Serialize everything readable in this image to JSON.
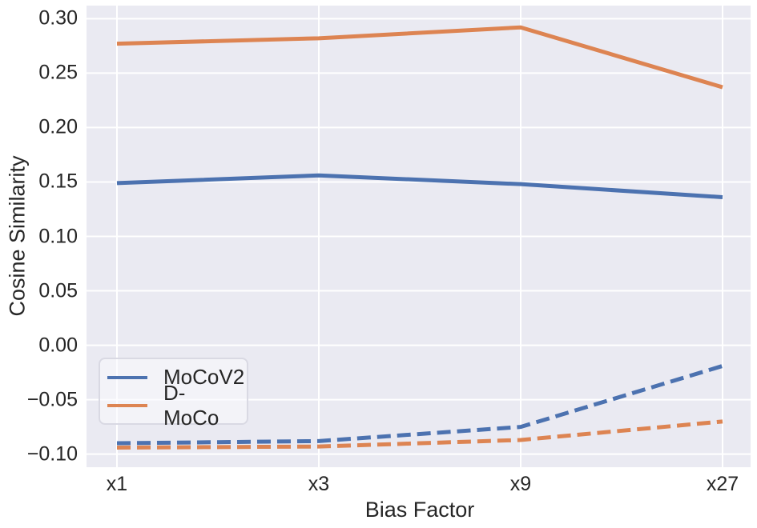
{
  "figure": {
    "background": "#ffffff",
    "plot_background": "#eaeaf2",
    "grid_color": "#ffffff",
    "text_color": "#262626"
  },
  "chart_data": {
    "type": "line",
    "title": "",
    "xlabel": "Bias Factor",
    "ylabel": "Cosine Similarity",
    "categories": [
      "x1",
      "x3",
      "x9",
      "x27"
    ],
    "y_ticks": [
      0.3,
      0.25,
      0.2,
      0.15,
      0.1,
      0.05,
      0.0,
      -0.05,
      -0.1
    ],
    "y_tick_labels": [
      "0.30",
      "0.25",
      "0.20",
      "0.15",
      "0.10",
      "0.05",
      "0.00",
      "−0.05",
      "−0.10"
    ],
    "ylim": [
      -0.112,
      0.312
    ],
    "grid": true,
    "legend_position": "lower-left-inside",
    "series": [
      {
        "name": "MoCoV2",
        "style": "solid",
        "color": "#4c72b0",
        "values": [
          0.149,
          0.156,
          0.148,
          0.136
        ]
      },
      {
        "name": "D-MoCo",
        "style": "solid",
        "color": "#dd8452",
        "values": [
          0.277,
          0.282,
          0.292,
          0.237
        ]
      },
      {
        "name": "MoCoV2 (dashed)",
        "style": "dashed",
        "color": "#4c72b0",
        "values": [
          -0.09,
          -0.088,
          -0.075,
          -0.019
        ]
      },
      {
        "name": "D-MoCo (dashed)",
        "style": "dashed",
        "color": "#dd8452",
        "values": [
          -0.094,
          -0.093,
          -0.087,
          -0.07
        ]
      }
    ],
    "legend": [
      {
        "label": "MoCoV2",
        "color": "#4c72b0"
      },
      {
        "label": "D-MoCo",
        "color": "#dd8452"
      }
    ]
  }
}
